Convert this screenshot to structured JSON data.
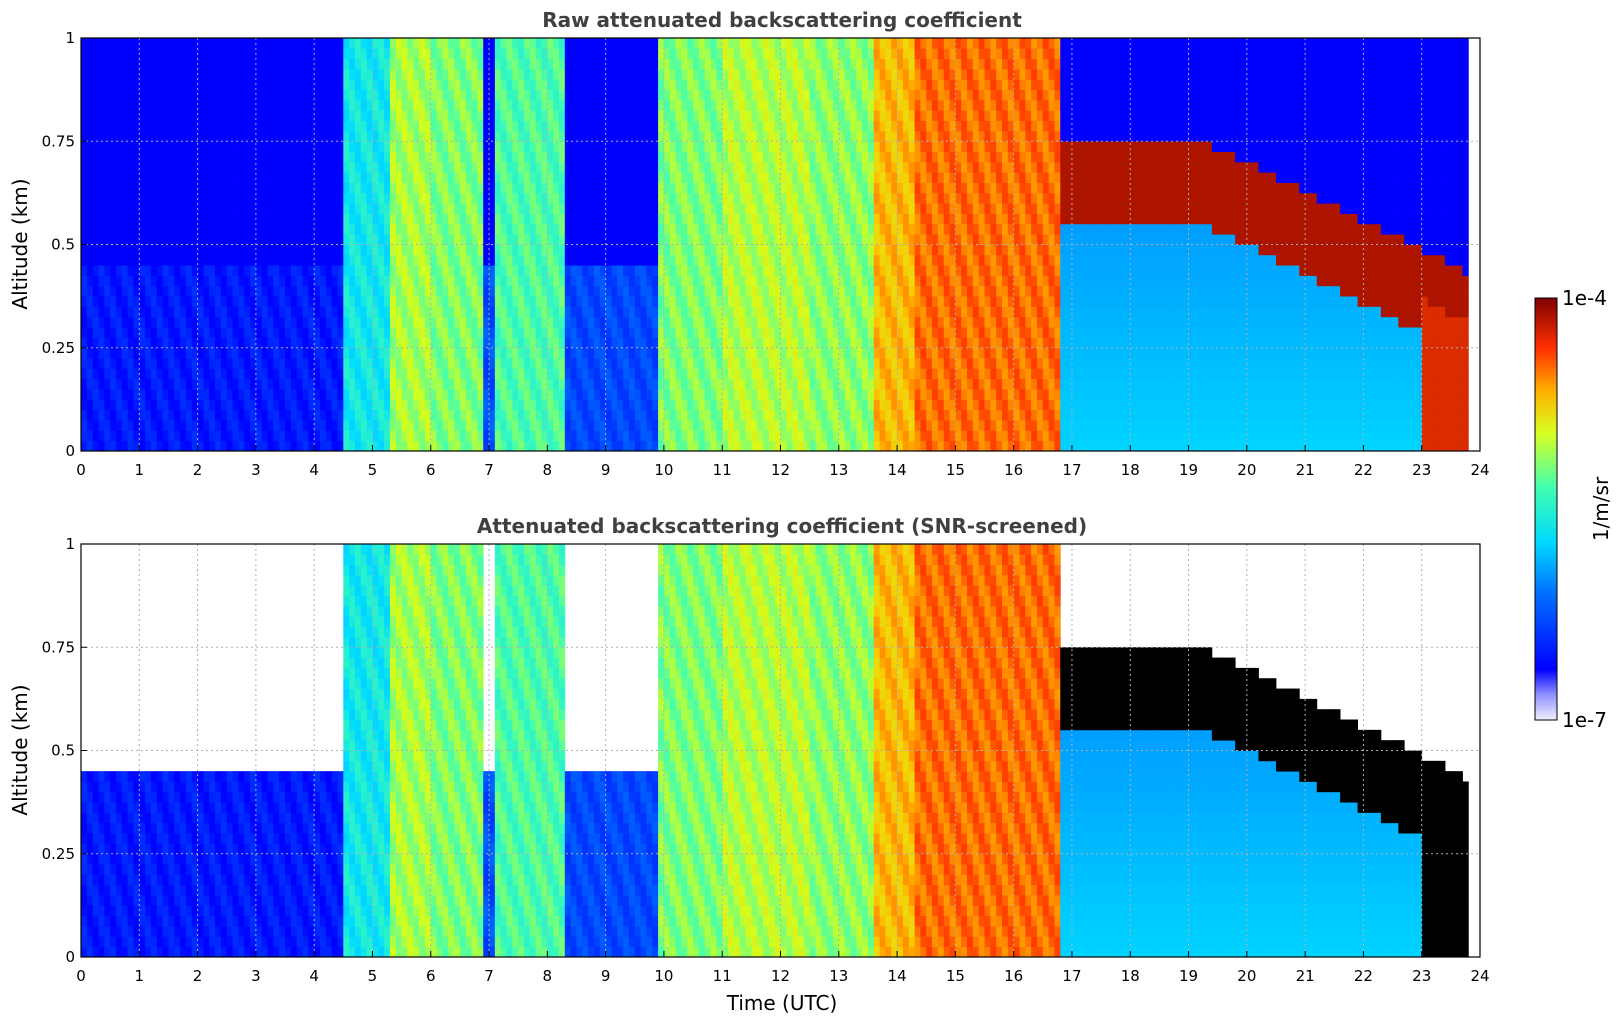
{
  "chart_data": [
    {
      "type": "heatmap",
      "title": "Raw attenuated backscattering coefficient",
      "xlabel": "",
      "ylabel": "Altitude (km)",
      "xlim": [
        0,
        24
      ],
      "ylim": [
        0,
        1
      ],
      "xticks": [
        "0",
        "1",
        "2",
        "3",
        "4",
        "5",
        "6",
        "7",
        "8",
        "9",
        "10",
        "11",
        "12",
        "13",
        "14",
        "15",
        "16",
        "17",
        "18",
        "19",
        "20",
        "21",
        "22",
        "23",
        "24"
      ],
      "yticks": [
        "0",
        "0.25",
        "0.5",
        "0.75",
        "1"
      ],
      "grid": true,
      "screened": false
    },
    {
      "type": "heatmap",
      "title": "Attenuated backscattering coefficient (SNR-screened)",
      "xlabel": "Time (UTC)",
      "ylabel": "Altitude (km)",
      "xlim": [
        0,
        24
      ],
      "ylim": [
        0,
        1
      ],
      "xticks": [
        "0",
        "1",
        "2",
        "3",
        "4",
        "5",
        "6",
        "7",
        "8",
        "9",
        "10",
        "11",
        "12",
        "13",
        "14",
        "15",
        "16",
        "17",
        "18",
        "19",
        "20",
        "21",
        "22",
        "23",
        "24"
      ],
      "yticks": [
        "0",
        "0.25",
        "0.5",
        "0.75",
        "1"
      ],
      "grid": true,
      "screened": true
    }
  ],
  "colorbar": {
    "label": "1/m/sr",
    "min_label": "1e-7",
    "max_label": "1e-4",
    "scale": "log",
    "colormap": "jet"
  },
  "colors": {
    "low": "#0000ff",
    "mid": "#00ffff",
    "high": "#ff0000",
    "max": "#800000",
    "title": "#404040"
  }
}
